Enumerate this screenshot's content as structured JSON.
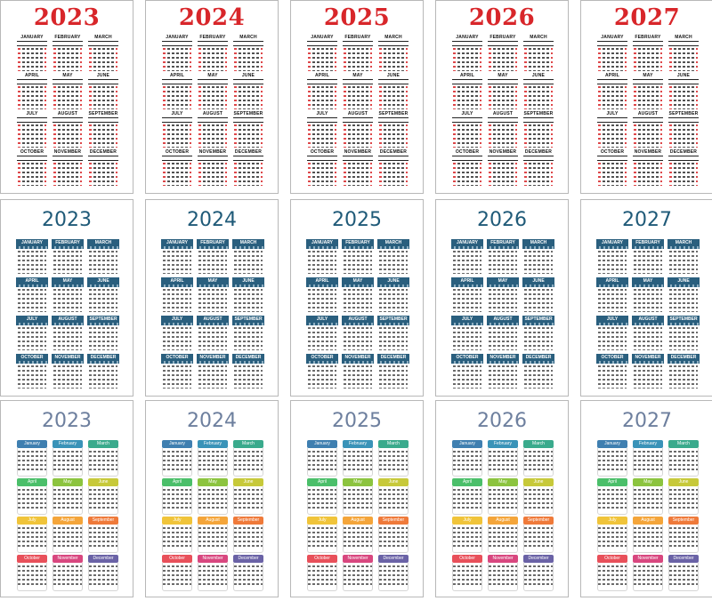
{
  "years": [
    "2023",
    "2024",
    "2025",
    "2026",
    "2027"
  ],
  "styles": [
    {
      "id": "classic",
      "months": [
        "JANUARY",
        "FEBRUARY",
        "MARCH",
        "APRIL",
        "MAY",
        "JUNE",
        "JULY",
        "AUGUST",
        "SEPTEMBER",
        "OCTOBER",
        "NOVEMBER",
        "DECEMBER"
      ],
      "weekday_header": "S M T W T F S",
      "year_color": "#d8262a"
    },
    {
      "id": "blue-bar",
      "months": [
        "JANUARY",
        "FEBRUARY",
        "MARCH",
        "APRIL",
        "MAY",
        "JUNE",
        "JULY",
        "AUGUST",
        "SEPTEMBER",
        "OCTOBER",
        "NOVEMBER",
        "DECEMBER"
      ],
      "weekday_header": "S M T W T F S",
      "year_color": "#1f5a78",
      "header_color": "#2a5f7e"
    },
    {
      "id": "rainbow",
      "months": [
        "January",
        "February",
        "March",
        "April",
        "May",
        "June",
        "July",
        "August",
        "September",
        "October",
        "November",
        "December"
      ],
      "weekday_header": "S M T W T F S",
      "year_color": "#6d7f9e",
      "month_colors": [
        "#3f7fb0",
        "#3a93b8",
        "#3aaa8c",
        "#4bbf6a",
        "#8cc43f",
        "#c7c93a",
        "#f0c43a",
        "#f4a53a",
        "#ef7a3a",
        "#e8505a",
        "#d8477f",
        "#6a62a6"
      ]
    }
  ]
}
